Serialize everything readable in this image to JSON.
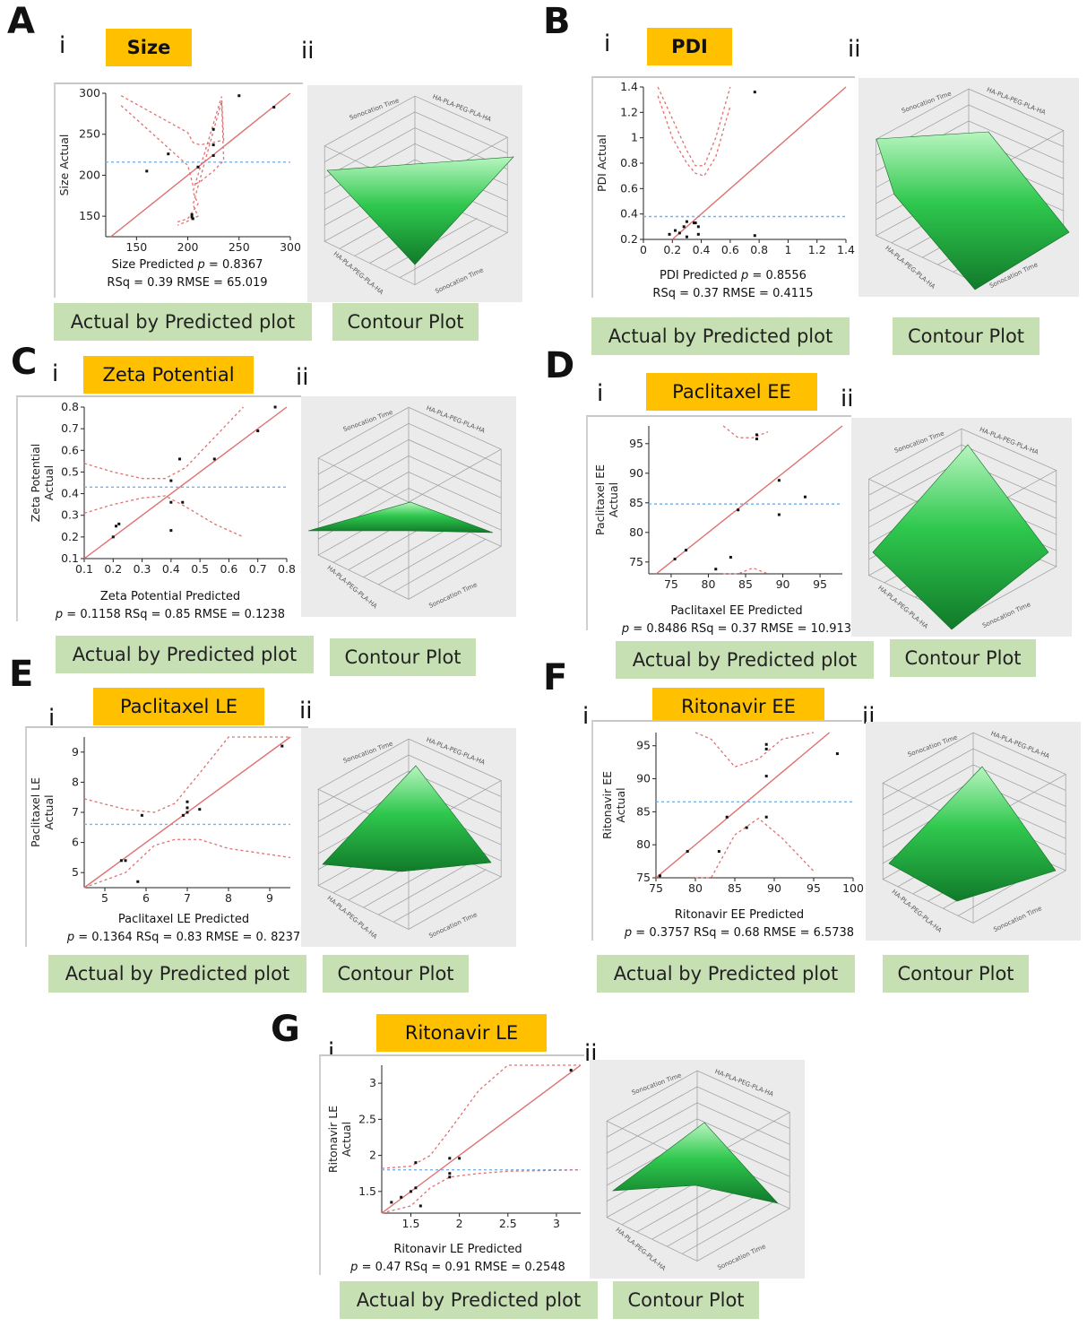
{
  "panels": {
    "A": {
      "letter": "A",
      "roman_i": "i",
      "roman_ii": "ii",
      "title": "Size",
      "xlabel": "Size Predicted",
      "p_label": "p",
      "stats_line1_suffix": " = 0.8367",
      "stats_line2": "RSq = 0.39 RMSE = 65.019",
      "footer_left": "Actual by Predicted plot",
      "footer_right": "Contour Plot"
    },
    "B": {
      "letter": "B",
      "roman_i": "i",
      "roman_ii": "ii",
      "title": "PDI",
      "xlabel": "PDI Predicted",
      "p_label": "p",
      "stats_line1_suffix": " = 0.8556",
      "stats_line2": "RSq = 0.37 RMSE = 0.4115",
      "footer_left": "Actual by Predicted plot",
      "footer_right": "Contour Plot"
    },
    "C": {
      "letter": "C",
      "roman_i": "i",
      "roman_ii": "ii",
      "title": "Zeta Potential",
      "xlabel": "Zeta Potential Predicted",
      "p_label": "p",
      "stats_line2": " = 0.1158 RSq = 0.85 RMSE = 0.1238",
      "footer_left": "Actual by Predicted plot",
      "footer_right": "Contour Plot"
    },
    "D": {
      "letter": "D",
      "roman_i": "i",
      "roman_ii": "ii",
      "title": "Paclitaxel EE",
      "xlabel": "Paclitaxel EE Predicted",
      "p_label": "p",
      "stats_line2": " = 0.8486 RSq = 0.37 RMSE = 10.913",
      "footer_left": "Actual by Predicted plot",
      "footer_right": "Contour Plot"
    },
    "E": {
      "letter": "E",
      "roman_i": "i",
      "roman_ii": "ii",
      "title": "Paclitaxel LE",
      "xlabel": "Paclitaxel LE Predicted",
      "p_label": "p",
      "stats_line2": " = 0.1364 RSq = 0.83 RMSE = 0. 8237",
      "footer_left": "Actual by Predicted plot",
      "footer_right": "Contour Plot"
    },
    "F": {
      "letter": "F",
      "roman_i": "i",
      "roman_ii": "ii",
      "title": "Ritonavir EE",
      "xlabel": "Ritonavir EE Predicted",
      "p_label": "p",
      "stats_line2": " = 0.3757 RSq = 0.68 RMSE = 6.5738",
      "footer_left": "Actual by Predicted plot",
      "footer_right": "Contour Plot"
    },
    "G": {
      "letter": "G",
      "roman_i": "i",
      "roman_ii": "ii",
      "title": "Ritonavir LE",
      "xlabel": "Ritonavir LE Predicted",
      "p_label": "p",
      "stats_line2": " = 0.47 RSq = 0.91 RMSE = 0.2548",
      "footer_left": "Actual by Predicted plot",
      "footer_right": "Contour Plot"
    }
  },
  "colors": {
    "title_bg": "#ffc000",
    "footer_bg": "#c6e0b4",
    "fit_line": "#e07070",
    "mean_line": "#7fb0e0",
    "surface": "#1aa83a"
  },
  "surface_axis_labels": {
    "top_left": "Sonocation Time",
    "top_right": "HA-PLA-PEG-PLA-HA",
    "bottom_left": "HA-PLA-PEG-PLA-HA",
    "bottom_right": "Sonocation Time"
  },
  "chart_data": [
    {
      "id": "A",
      "type": "scatter",
      "title": "Size",
      "xlabel": "Size Predicted",
      "ylabel": "Size Actual",
      "xlim": [
        120,
        300
      ],
      "ylim": [
        125,
        300
      ],
      "xticks": [
        150,
        200,
        250,
        300
      ],
      "yticks": [
        150,
        200,
        250,
        300
      ],
      "mean": 216,
      "ci": [
        [
          135,
          297,
          285
        ],
        [
          200,
          252,
          212
        ],
        [
          205,
          240,
          188
        ],
        [
          212,
          237,
          192
        ],
        [
          225,
          240,
          205
        ],
        [
          235,
          243,
          218
        ],
        [
          233,
          296,
          290
        ],
        [
          205,
          180,
          164
        ],
        [
          210,
          165,
          150
        ],
        [
          200,
          147,
          144
        ],
        [
          190,
          143,
          139
        ]
      ],
      "points": [
        [
          160,
          205
        ],
        [
          181,
          226
        ],
        [
          204,
          152
        ],
        [
          204,
          149
        ],
        [
          205,
          147
        ],
        [
          210,
          210
        ],
        [
          225,
          256
        ],
        [
          225,
          237
        ],
        [
          225,
          224
        ],
        [
          250,
          297
        ],
        [
          284,
          283
        ]
      ]
    },
    {
      "id": "B",
      "type": "scatter",
      "title": "PDI",
      "xlabel": "PDI Predicted",
      "ylabel": "PDI Actual",
      "xlim": [
        0,
        1.4
      ],
      "ylim": [
        0.2,
        1.4
      ],
      "xticks": [
        0,
        0.2,
        0.4,
        0.6,
        0.8,
        1,
        1.2,
        1.4
      ],
      "yticks": [
        0.2,
        0.4,
        0.6,
        0.8,
        1,
        1.2,
        1.4
      ],
      "mean": 0.38,
      "ci": [
        [
          0.1,
          1.4,
          1.33
        ],
        [
          0.2,
          1.15,
          1.0
        ],
        [
          0.3,
          0.9,
          0.8
        ],
        [
          0.36,
          0.78,
          0.72
        ],
        [
          0.42,
          0.78,
          0.7
        ],
        [
          0.5,
          1.0,
          0.85
        ],
        [
          0.6,
          1.4,
          1.25
        ]
      ],
      "points": [
        [
          0.18,
          0.24
        ],
        [
          0.22,
          0.27
        ],
        [
          0.25,
          0.25
        ],
        [
          0.28,
          0.3
        ],
        [
          0.3,
          0.34
        ],
        [
          0.3,
          0.22
        ],
        [
          0.35,
          0.33
        ],
        [
          0.36,
          0.33
        ],
        [
          0.38,
          0.3
        ],
        [
          0.38,
          0.24
        ],
        [
          0.77,
          1.36
        ],
        [
          0.77,
          0.23
        ]
      ]
    },
    {
      "id": "C",
      "type": "scatter",
      "title": "Zeta Potential",
      "xlabel": "Zeta Potential Predicted",
      "ylabel": "Zeta Potential Actual",
      "xlim": [
        0.1,
        0.8
      ],
      "ylim": [
        0.1,
        0.8
      ],
      "xticks": [
        0.1,
        0.2,
        0.3,
        0.4,
        0.5,
        0.6,
        0.7,
        0.8
      ],
      "yticks": [
        0.1,
        0.2,
        0.3,
        0.4,
        0.5,
        0.6,
        0.7,
        0.8
      ],
      "mean": 0.43,
      "ci": [
        [
          0.1,
          0.54,
          0.31
        ],
        [
          0.2,
          0.5,
          0.35
        ],
        [
          0.3,
          0.47,
          0.38
        ],
        [
          0.38,
          0.47,
          0.39
        ],
        [
          0.45,
          0.52,
          0.34
        ],
        [
          0.55,
          0.66,
          0.26
        ],
        [
          0.65,
          0.8,
          0.2
        ]
      ],
      "points": [
        [
          0.2,
          0.2
        ],
        [
          0.21,
          0.25
        ],
        [
          0.22,
          0.26
        ],
        [
          0.4,
          0.46
        ],
        [
          0.4,
          0.36
        ],
        [
          0.4,
          0.23
        ],
        [
          0.43,
          0.56
        ],
        [
          0.44,
          0.36
        ],
        [
          0.55,
          0.56
        ],
        [
          0.7,
          0.69
        ],
        [
          0.76,
          0.8
        ]
      ]
    },
    {
      "id": "D",
      "type": "scatter",
      "title": "Paclitaxel EE",
      "xlabel": "Paclitaxel EE Predicted",
      "ylabel": "Paclitaxel EE Actual",
      "xlim": [
        72,
        98
      ],
      "ylim": [
        73,
        98
      ],
      "xticks": [
        75,
        80,
        85,
        90,
        95
      ],
      "yticks": [
        75,
        80,
        85,
        90,
        95
      ],
      "mean": 84.8,
      "ci": [
        [
          82,
          98,
          73
        ],
        [
          84,
          96,
          73
        ],
        [
          86,
          96,
          74
        ],
        [
          88,
          97,
          73
        ]
      ],
      "points": [
        [
          75.5,
          75.5
        ],
        [
          77,
          77
        ],
        [
          81,
          73.8
        ],
        [
          83,
          75.8
        ],
        [
          84,
          83.8
        ],
        [
          86.5,
          95.8
        ],
        [
          86.5,
          96.5
        ],
        [
          89.5,
          83
        ],
        [
          89.5,
          88.8
        ],
        [
          93,
          86
        ]
      ]
    },
    {
      "id": "E",
      "type": "scatter",
      "title": "Paclitaxel LE",
      "xlabel": "Paclitaxel LE Predicted",
      "ylabel": "Paclitaxel LE Actual",
      "xlim": [
        4.5,
        9.5
      ],
      "ylim": [
        4.5,
        9.5
      ],
      "xticks": [
        5,
        6,
        7,
        8,
        9
      ],
      "yticks": [
        5,
        6,
        7,
        8,
        9
      ],
      "mean": 6.6,
      "ci": [
        [
          4.5,
          7.45,
          4.5
        ],
        [
          5.5,
          7.1,
          5.0
        ],
        [
          6.2,
          7.0,
          5.9
        ],
        [
          6.7,
          7.3,
          6.1
        ],
        [
          7.3,
          8.3,
          6.1
        ],
        [
          8.0,
          9.5,
          5.8
        ],
        [
          9.5,
          9.5,
          5.5
        ]
      ],
      "points": [
        [
          5.4,
          5.4
        ],
        [
          5.5,
          5.4
        ],
        [
          5.8,
          4.7
        ],
        [
          5.9,
          6.9
        ],
        [
          6.9,
          6.9
        ],
        [
          7.0,
          7.0
        ],
        [
          7.0,
          7.15
        ],
        [
          7.0,
          7.35
        ],
        [
          7.3,
          7.1
        ],
        [
          9.3,
          9.2
        ]
      ]
    },
    {
      "id": "F",
      "type": "scatter",
      "title": "Ritonavir EE",
      "xlabel": "Ritonavir EE Predicted",
      "ylabel": "Ritonavir EE Actual",
      "xlim": [
        75,
        100
      ],
      "ylim": [
        75,
        97
      ],
      "xticks": [
        75,
        80,
        85,
        90,
        95,
        100
      ],
      "yticks": [
        75,
        80,
        85,
        90,
        95
      ],
      "mean": 86.5,
      "ci": [
        [
          80,
          97,
          75
        ],
        [
          82,
          96,
          75
        ],
        [
          85,
          91.8,
          81.5
        ],
        [
          88,
          93,
          84
        ],
        [
          91,
          96,
          81
        ],
        [
          95,
          97,
          76
        ]
      ],
      "points": [
        [
          75.5,
          75.3
        ],
        [
          79,
          79
        ],
        [
          83,
          79
        ],
        [
          84,
          84.2
        ],
        [
          86.5,
          82.6
        ],
        [
          89,
          84.2
        ],
        [
          89,
          94.5
        ],
        [
          89,
          95.2
        ],
        [
          89,
          90.4
        ],
        [
          98,
          93.8
        ]
      ]
    },
    {
      "id": "G",
      "type": "scatter",
      "title": "Ritonavir LE",
      "xlabel": "Ritonavir LE Predicted",
      "ylabel": "Ritonavir LE Actual",
      "xlim": [
        1.2,
        3.25
      ],
      "ylim": [
        1.2,
        3.25
      ],
      "xticks": [
        1.5,
        2,
        2.5,
        3
      ],
      "yticks": [
        1.5,
        2,
        2.5,
        3
      ],
      "mean": 1.8,
      "ci": [
        [
          1.2,
          1.82,
          1.2
        ],
        [
          1.5,
          1.85,
          1.3
        ],
        [
          1.7,
          2.0,
          1.55
        ],
        [
          1.9,
          2.35,
          1.7
        ],
        [
          2.2,
          2.9,
          1.75
        ],
        [
          2.5,
          3.25,
          1.78
        ],
        [
          3.25,
          3.25,
          1.8
        ]
      ],
      "points": [
        [
          1.3,
          1.35
        ],
        [
          1.4,
          1.42
        ],
        [
          1.5,
          1.5
        ],
        [
          1.55,
          1.55
        ],
        [
          1.55,
          1.9
        ],
        [
          1.6,
          1.3
        ],
        [
          1.9,
          1.7
        ],
        [
          1.9,
          1.75
        ],
        [
          1.9,
          1.96
        ],
        [
          2.0,
          1.96
        ],
        [
          3.15,
          3.18
        ]
      ]
    }
  ]
}
